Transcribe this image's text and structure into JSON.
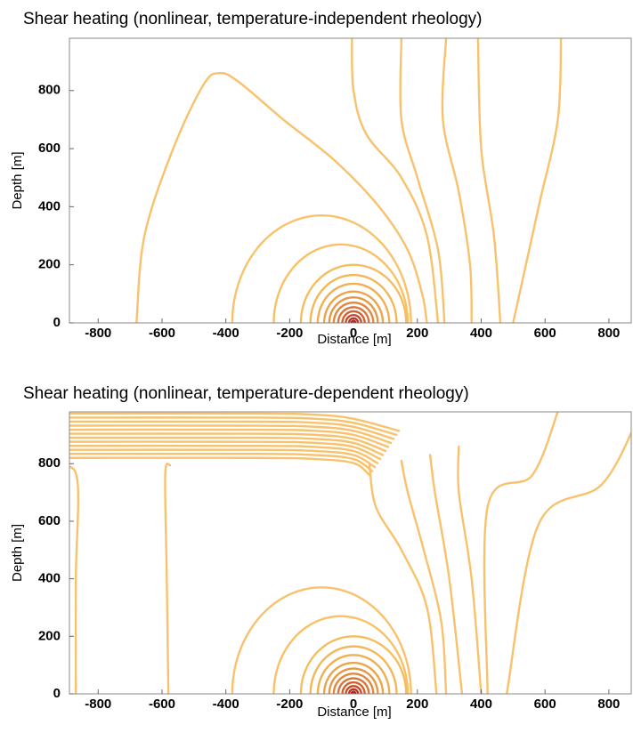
{
  "chart_data": [
    {
      "type": "contour",
      "title": "Shear heating (nonlinear, temperature-independent rheology)",
      "xlabel": "Distance  [m]",
      "ylabel": "Depth [m]",
      "xlim": [
        -890,
        870
      ],
      "ylim": [
        0,
        980
      ],
      "xticks": [
        -800,
        -600,
        -400,
        -200,
        0,
        200,
        400,
        600,
        800
      ],
      "yticks": [
        0,
        200,
        400,
        600,
        800
      ]
    },
    {
      "type": "contour",
      "title": "Shear heating (nonlinear, temperature-dependent rheology)",
      "xlabel": "Distance  [m]",
      "ylabel": "Depth [m]",
      "xlim": [
        -890,
        870
      ],
      "ylim": [
        0,
        980
      ],
      "xticks": [
        -800,
        -600,
        -400,
        -200,
        0,
        200,
        400,
        600,
        800
      ],
      "yticks": [
        0,
        200,
        400,
        600,
        800
      ]
    }
  ]
}
